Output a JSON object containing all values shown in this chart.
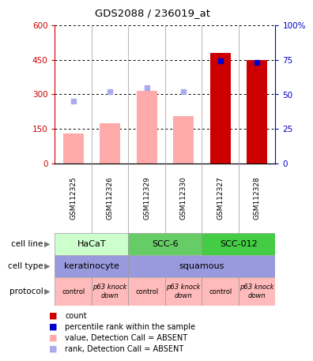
{
  "title": "GDS2088 / 236019_at",
  "samples": [
    "GSM112325",
    "GSM112326",
    "GSM112329",
    "GSM112330",
    "GSM112327",
    "GSM112328"
  ],
  "bar_values": [
    130,
    175,
    315,
    205,
    480,
    450
  ],
  "bar_colors": [
    "#ffaaaa",
    "#ffaaaa",
    "#ffaaaa",
    "#ffaaaa",
    "#cc0000",
    "#cc0000"
  ],
  "rank_dots_pct": [
    45,
    52,
    55,
    52,
    74,
    73
  ],
  "rank_dot_colors": [
    "#aaaaee",
    "#aaaaee",
    "#aaaaee",
    "#aaaaee",
    "#0000cc",
    "#0000cc"
  ],
  "ylim_left": [
    0,
    600
  ],
  "ylim_right": [
    0,
    100
  ],
  "yticks_left": [
    0,
    150,
    300,
    450,
    600
  ],
  "yticks_right": [
    0,
    25,
    50,
    75,
    100
  ],
  "ytick_labels_left": [
    "0",
    "150",
    "300",
    "450",
    "600"
  ],
  "ytick_labels_right": [
    "0",
    "25",
    "50",
    "75",
    "100%"
  ],
  "cell_line_labels": [
    [
      "HaCaT",
      0,
      2
    ],
    [
      "SCC-6",
      2,
      4
    ],
    [
      "SCC-012",
      4,
      6
    ]
  ],
  "cell_line_colors": [
    "#ccffcc",
    "#66cc66",
    "#44cc44"
  ],
  "cell_type_labels": [
    [
      "keratinocyte",
      0,
      2
    ],
    [
      "squamous",
      2,
      6
    ]
  ],
  "cell_type_color": "#9999dd",
  "protocol_labels": [
    "control",
    "p63 knock\ndown",
    "control",
    "p63 knock\ndown",
    "control",
    "p63 knock\ndown"
  ],
  "protocol_color": "#ffbbbb",
  "left_labels": [
    "cell line",
    "cell type",
    "protocol"
  ],
  "legend_items": [
    {
      "color": "#cc0000",
      "label": "count"
    },
    {
      "color": "#0000cc",
      "label": "percentile rank within the sample"
    },
    {
      "color": "#ffaaaa",
      "label": "value, Detection Call = ABSENT"
    },
    {
      "color": "#aaaaee",
      "label": "rank, Detection Call = ABSENT"
    }
  ],
  "bg_color": "#ffffff",
  "plot_bg": "#ffffff",
  "axis_left_color": "#cc0000",
  "axis_right_color": "#0000cc",
  "sample_bg_color": "#cccccc",
  "bar_width": 0.55
}
